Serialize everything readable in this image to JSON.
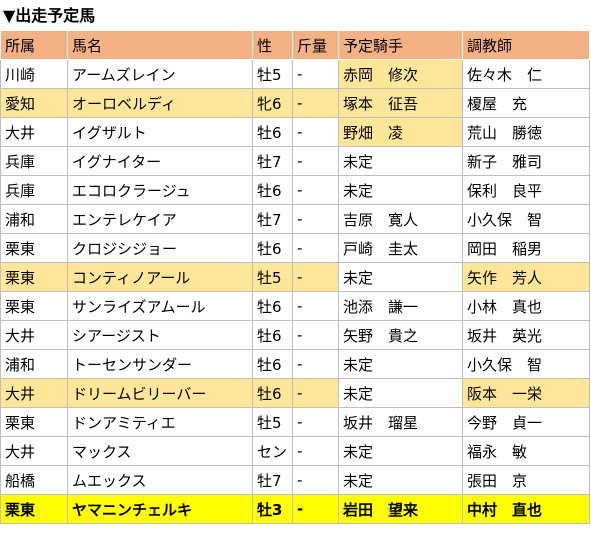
{
  "title": "▼出走予定馬",
  "columns": [
    "所属",
    "馬名",
    "性",
    "斤量",
    "予定騎手",
    "調教師"
  ],
  "rows": [
    {
      "affil": "川崎",
      "horse": "アームズレイン",
      "sex": "牡5",
      "weight": "-",
      "jockey": "赤岡　修次",
      "trainer": "佐々木　仁"
    },
    {
      "affil": "愛知",
      "horse": "オーロベルディ",
      "sex": "牝6",
      "weight": "-",
      "jockey": "塚本　征吾",
      "trainer": "榎屋　充"
    },
    {
      "affil": "大井",
      "horse": "イグザルト",
      "sex": "牡6",
      "weight": "-",
      "jockey": "野畑　凌",
      "trainer": "荒山　勝徳"
    },
    {
      "affil": "兵庫",
      "horse": "イグナイター",
      "sex": "牡7",
      "weight": "-",
      "jockey": "未定",
      "trainer": "新子　雅司"
    },
    {
      "affil": "兵庫",
      "horse": "エコロクラージュ",
      "sex": "牡6",
      "weight": "-",
      "jockey": "未定",
      "trainer": "保利　良平"
    },
    {
      "affil": "浦和",
      "horse": "エンテレケイア",
      "sex": "牡7",
      "weight": "-",
      "jockey": "吉原　寛人",
      "trainer": "小久保　智"
    },
    {
      "affil": "栗東",
      "horse": "クロジシジョー",
      "sex": "牡6",
      "weight": "-",
      "jockey": "戸崎　圭太",
      "trainer": "岡田　稲男"
    },
    {
      "affil": "栗東",
      "horse": "コンティノアール",
      "sex": "牡5",
      "weight": "-",
      "jockey": "未定",
      "trainer": "矢作　芳人"
    },
    {
      "affil": "栗東",
      "horse": "サンライズアムール",
      "sex": "牡6",
      "weight": "-",
      "jockey": "池添　謙一",
      "trainer": "小林　真也"
    },
    {
      "affil": "大井",
      "horse": "シアージスト",
      "sex": "牡6",
      "weight": "-",
      "jockey": "矢野　貴之",
      "trainer": "坂井　英光"
    },
    {
      "affil": "浦和",
      "horse": "トーセンサンダー",
      "sex": "牡6",
      "weight": "-",
      "jockey": "未定",
      "trainer": "小久保　智"
    },
    {
      "affil": "大井",
      "horse": "ドリームビリーバー",
      "sex": "牡6",
      "weight": "-",
      "jockey": "未定",
      "trainer": "阪本　一栄"
    },
    {
      "affil": "栗東",
      "horse": "ドンアミティエ",
      "sex": "牡5",
      "weight": "-",
      "jockey": "坂井　瑠星",
      "trainer": "今野　貞一"
    },
    {
      "affil": "大井",
      "horse": "マックス",
      "sex": "セン",
      "weight": "-",
      "jockey": "未定",
      "trainer": "福永　敏"
    },
    {
      "affil": "船橋",
      "horse": "ムエックス",
      "sex": "牡7",
      "weight": "-",
      "jockey": "未定",
      "trainer": "張田　京"
    },
    {
      "affil": "栗東",
      "horse": "ヤマニンチェルキ",
      "sex": "牡3",
      "weight": "-",
      "jockey": "岩田　望来",
      "trainer": "中村　直也"
    }
  ],
  "highlight_color": "#ffe699",
  "final_row_color": "#ffff00",
  "header_color": "#f4b183"
}
